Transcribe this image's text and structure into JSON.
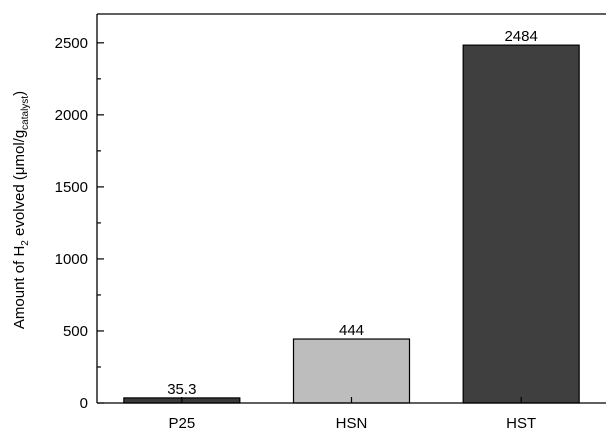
{
  "chart_data": {
    "type": "bar",
    "title": "",
    "xlabel": "",
    "ylabel": {
      "prefix": "Amount of H",
      "sub1": "2",
      "middle": " evolved (μmol/g",
      "sub2": "catalyst",
      "suffix": ")"
    },
    "categories": [
      "P25",
      "HSN",
      "HST"
    ],
    "values": [
      35.3,
      444,
      2484
    ],
    "value_labels": [
      "35.3",
      "444",
      "2484"
    ],
    "bar_colors": [
      "#3a3a3a",
      "#bdbdbd",
      "#3f3f3f"
    ],
    "ylim": [
      0,
      2700
    ],
    "yticks": [
      0,
      500,
      1000,
      1500,
      2000,
      2500
    ],
    "ytick_labels": [
      "0",
      "500",
      "1000",
      "1500",
      "2000",
      "2500"
    ],
    "grid": false,
    "legend": "none"
  }
}
